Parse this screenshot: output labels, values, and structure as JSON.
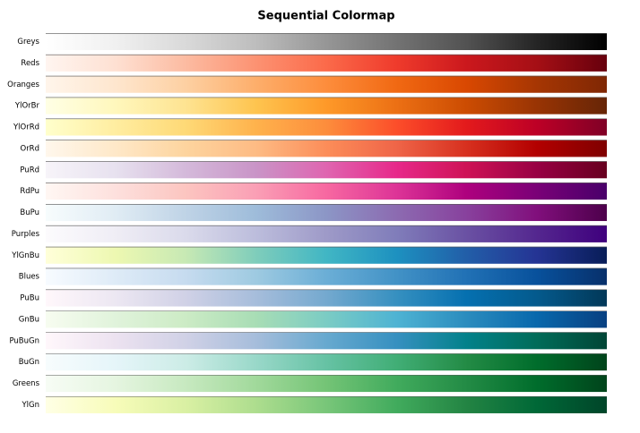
{
  "chart_data": {
    "type": "colormap",
    "title": "Sequential Colormap",
    "series": [
      {
        "name": "Greys",
        "colors": [
          "#ffffff",
          "#f0f0f0",
          "#d9d9d9",
          "#bdbdbd",
          "#969696",
          "#737373",
          "#525252",
          "#252525",
          "#000000"
        ]
      },
      {
        "name": "Reds",
        "colors": [
          "#fff5f0",
          "#fee0d2",
          "#fcbba1",
          "#fc9272",
          "#fb6a4a",
          "#ef3b2c",
          "#cb181d",
          "#a50f15",
          "#67000d"
        ]
      },
      {
        "name": "Oranges",
        "colors": [
          "#fff5eb",
          "#fee6ce",
          "#fdd0a2",
          "#fdae6b",
          "#fd8d3c",
          "#f16913",
          "#d94801",
          "#a63603",
          "#7f2704"
        ]
      },
      {
        "name": "YlOrBr",
        "colors": [
          "#ffffe5",
          "#fff7bc",
          "#fee391",
          "#fec44f",
          "#fe9929",
          "#ec7014",
          "#cc4c02",
          "#993404",
          "#662506"
        ]
      },
      {
        "name": "YlOrRd",
        "colors": [
          "#ffffcc",
          "#ffeda0",
          "#fed976",
          "#feb24c",
          "#fd8d3c",
          "#fc4e2a",
          "#e31a1c",
          "#bd0026",
          "#800026"
        ]
      },
      {
        "name": "OrRd",
        "colors": [
          "#fff7ec",
          "#fee8c8",
          "#fdd49e",
          "#fdbb84",
          "#fc8d59",
          "#ef6548",
          "#d7301f",
          "#b30000",
          "#7f0000"
        ]
      },
      {
        "name": "PuRd",
        "colors": [
          "#f7f4f9",
          "#e7e1ef",
          "#d4b9da",
          "#c994c7",
          "#df65b0",
          "#e7298a",
          "#ce1256",
          "#980043",
          "#67001f"
        ]
      },
      {
        "name": "RdPu",
        "colors": [
          "#fff7f3",
          "#fde0dd",
          "#fcc5c0",
          "#fa9fb5",
          "#f768a1",
          "#dd3497",
          "#ae017e",
          "#7a0177",
          "#49006a"
        ]
      },
      {
        "name": "BuPu",
        "colors": [
          "#f7fcfd",
          "#e0ecf4",
          "#bfd3e6",
          "#9ebcda",
          "#8c96c6",
          "#8c6bb1",
          "#88419d",
          "#810f7c",
          "#4d004b"
        ]
      },
      {
        "name": "Purples",
        "colors": [
          "#fcfbfd",
          "#efedf5",
          "#dadaeb",
          "#bcbddc",
          "#9e9ac8",
          "#807dba",
          "#6a51a3",
          "#54278f",
          "#3f007d"
        ]
      },
      {
        "name": "YlGnBu",
        "colors": [
          "#ffffd9",
          "#edf8b1",
          "#c7e9b4",
          "#7fcdbb",
          "#41b6c4",
          "#1d91c0",
          "#225ea8",
          "#253494",
          "#081d58"
        ]
      },
      {
        "name": "Blues",
        "colors": [
          "#f7fbff",
          "#deebf7",
          "#c6dbef",
          "#9ecae1",
          "#6baed6",
          "#4292c6",
          "#2171b5",
          "#08519c",
          "#08306b"
        ]
      },
      {
        "name": "PuBu",
        "colors": [
          "#fff7fb",
          "#ece7f2",
          "#d0d1e6",
          "#a6bddb",
          "#74a9cf",
          "#3690c0",
          "#0570b0",
          "#045a8d",
          "#023858"
        ]
      },
      {
        "name": "GnBu",
        "colors": [
          "#f7fcf0",
          "#e0f3db",
          "#ccebc5",
          "#a8ddb5",
          "#7bccc4",
          "#4eb3d3",
          "#2b8cbe",
          "#0868ac",
          "#084081"
        ]
      },
      {
        "name": "PuBuGn",
        "colors": [
          "#fff7fb",
          "#ece2f0",
          "#d0d1e6",
          "#a6bddb",
          "#67a9cf",
          "#3690c0",
          "#02818a",
          "#016c59",
          "#014636"
        ]
      },
      {
        "name": "BuGn",
        "colors": [
          "#f7fcfd",
          "#e5f5f9",
          "#ccece6",
          "#99d8c9",
          "#66c2a4",
          "#41ae76",
          "#238b45",
          "#006d2c",
          "#00441b"
        ]
      },
      {
        "name": "Greens",
        "colors": [
          "#f7fcf5",
          "#e5f5e0",
          "#c7e9c0",
          "#a1d99b",
          "#74c476",
          "#41ab5d",
          "#238b45",
          "#006d2c",
          "#00441b"
        ]
      },
      {
        "name": "YlGn",
        "colors": [
          "#ffffe5",
          "#f7fcb9",
          "#d9f0a3",
          "#addd8e",
          "#78c679",
          "#41ab5d",
          "#238443",
          "#006837",
          "#004529"
        ]
      }
    ]
  }
}
